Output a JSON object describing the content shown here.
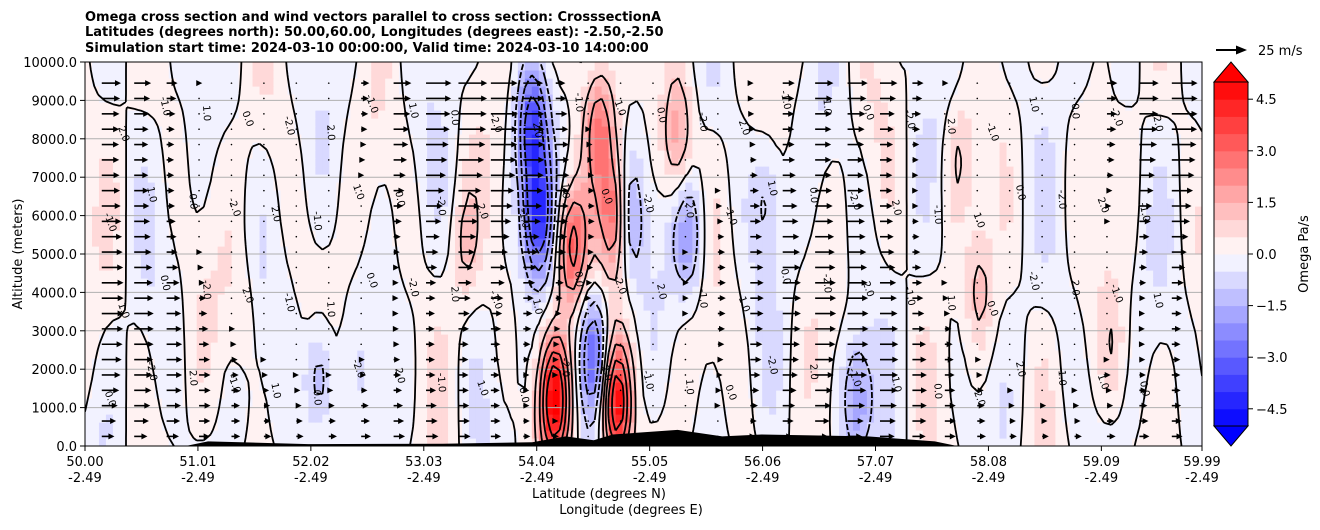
{
  "chart_data": {
    "type": "heatmap",
    "subtype": "cross-section filled contour with wind vectors",
    "title_lines": [
      "Omega cross section and wind vectors parallel to cross section: CrosssectionA",
      "Latitudes (degrees north): 50.00,60.00, Longitudes (degrees east): -2.50,-2.50",
      "Simulation start time: 2024-03-10 00:00:00, Valid time: 2024-03-10 14:00:00"
    ],
    "xlabel_lines": [
      "Latitude (degrees N)",
      "Longitude (degrees E)"
    ],
    "ylabel": "Altitude (meters)",
    "x_range": [
      50.0,
      59.99
    ],
    "y_range": [
      0,
      10000
    ],
    "x_ticks": [
      {
        "lat": "50.00",
        "lon": "-2.49",
        "value": 50.0
      },
      {
        "lat": "51.01",
        "lon": "-2.49",
        "value": 51.01
      },
      {
        "lat": "52.02",
        "lon": "-2.49",
        "value": 52.02
      },
      {
        "lat": "53.03",
        "lon": "-2.49",
        "value": 53.03
      },
      {
        "lat": "54.04",
        "lon": "-2.49",
        "value": 54.04
      },
      {
        "lat": "55.05",
        "lon": "-2.49",
        "value": 55.05
      },
      {
        "lat": "56.06",
        "lon": "-2.49",
        "value": 56.06
      },
      {
        "lat": "57.07",
        "lon": "-2.49",
        "value": 57.07
      },
      {
        "lat": "58.08",
        "lon": "-2.49",
        "value": 58.08
      },
      {
        "lat": "59.09",
        "lon": "-2.49",
        "value": 59.09
      },
      {
        "lat": "59.99",
        "lon": "-2.49",
        "value": 59.99
      }
    ],
    "y_ticks": [
      {
        "label": "0.0",
        "value": 0
      },
      {
        "label": "1000.0",
        "value": 1000
      },
      {
        "label": "2000.0",
        "value": 2000
      },
      {
        "label": "3000.0",
        "value": 3000
      },
      {
        "label": "4000.0",
        "value": 4000
      },
      {
        "label": "5000.0",
        "value": 5000
      },
      {
        "label": "6000.0",
        "value": 6000
      },
      {
        "label": "7000.0",
        "value": 7000
      },
      {
        "label": "8000.0",
        "value": 8000
      },
      {
        "label": "9000.0",
        "value": 9000
      },
      {
        "label": "10000.0",
        "value": 10000
      }
    ],
    "grid_horizontal": true,
    "colorbar": {
      "label": "Omega Pa/s",
      "range": [
        -5.0,
        5.0
      ],
      "extend": "both",
      "ticks": [
        {
          "label": "4.5",
          "value": 4.5
        },
        {
          "label": "3.0",
          "value": 3.0
        },
        {
          "label": "1.5",
          "value": 1.5
        },
        {
          "label": "0.0",
          "value": 0.0
        },
        {
          "label": "−1.5",
          "value": -1.5
        },
        {
          "label": "−3.0",
          "value": -3.0
        },
        {
          "label": "−4.5",
          "value": -4.5
        }
      ],
      "colormap": "bwr",
      "colors": {
        "low": "#0000ff",
        "mid": "#ffffff",
        "high": "#ff0000"
      }
    },
    "quiver_key": {
      "label": "25 m/s",
      "speed": 25
    },
    "contour_labels": [
      "0.0",
      "1.0",
      "-1.0",
      "2.0",
      "-2.0"
    ],
    "omega_features": [
      {
        "lat": 54.2,
        "z": 1200,
        "omega": 5.0
      },
      {
        "lat": 54.75,
        "z": 1100,
        "omega": 5.0
      },
      {
        "lat": 54.35,
        "z": 5200,
        "omega": 3.5
      },
      {
        "lat": 54.75,
        "z": 6000,
        "omega": 3.5
      },
      {
        "lat": 54.6,
        "z": 8300,
        "omega": 2.5
      },
      {
        "lat": 55.3,
        "z": 8000,
        "omega": 2.0
      },
      {
        "lat": 54.05,
        "z": 6000,
        "omega": -4.0
      },
      {
        "lat": 54.0,
        "z": 8300,
        "omega": -3.5
      },
      {
        "lat": 54.55,
        "z": 2400,
        "omega": -3.0
      },
      {
        "lat": 54.85,
        "z": 6000,
        "omega": -2.5
      },
      {
        "lat": 55.4,
        "z": 5500,
        "omega": -2.0
      },
      {
        "lat": 52.1,
        "z": 1800,
        "omega": -2.0
      },
      {
        "lat": 56.9,
        "z": 1200,
        "omega": -2.0
      },
      {
        "lat": 53.4,
        "z": 5200,
        "omega": 1.0
      },
      {
        "lat": 51.4,
        "z": 3500,
        "omega": 0.6
      },
      {
        "lat": 58.0,
        "z": 4000,
        "omega": 1.2
      },
      {
        "lat": 56.1,
        "z": 6500,
        "omega": -1.2
      },
      {
        "lat": 57.8,
        "z": 7500,
        "omega": 1.0
      },
      {
        "lat": 59.2,
        "z": 2500,
        "omega": 0.8
      }
    ],
    "terrain": [
      {
        "lat": 51.1,
        "z": 120
      },
      {
        "lat": 52.0,
        "z": 50
      },
      {
        "lat": 53.2,
        "z": 60
      },
      {
        "lat": 54.0,
        "z": 100
      },
      {
        "lat": 54.3,
        "z": 250
      },
      {
        "lat": 54.55,
        "z": 150
      },
      {
        "lat": 54.72,
        "z": 300
      },
      {
        "lat": 55.3,
        "z": 420
      },
      {
        "lat": 55.7,
        "z": 250
      },
      {
        "lat": 56.05,
        "z": 300
      },
      {
        "lat": 57.0,
        "z": 250
      },
      {
        "lat": 57.6,
        "z": 120
      }
    ]
  }
}
